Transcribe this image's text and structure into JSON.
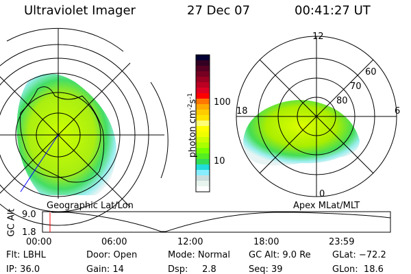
{
  "header": {
    "instrument": "Ultraviolet Imager",
    "date": "27 Dec 07",
    "time": "00:41:27 UT"
  },
  "colorbar": {
    "unit_label": "photon cm",
    "unit_sup1": "-2",
    "unit_mid": "s",
    "unit_sup2": "-1",
    "ticks": [
      "100",
      "10"
    ],
    "colors": [
      "#000033",
      "#330022",
      "#550022",
      "#770022",
      "#990022",
      "#bb0022",
      "#dd0022",
      "#ff0000",
      "#ff7700",
      "#ffaa00",
      "#ffcc00",
      "#ffe400",
      "#ffff77",
      "#ffff00",
      "#eeff00",
      "#ccff00",
      "#aaff00",
      "#77ff00",
      "#55ee22",
      "#33dd55",
      "#22dddd",
      "#88eeff",
      "#ccdddd",
      "#e8f4ee",
      "#ffffff"
    ]
  },
  "polar_plot": {
    "mlt_labels": [
      "12",
      "18",
      "6",
      "0"
    ],
    "mlat_labels": [
      "60",
      "70",
      "80"
    ]
  },
  "map_labels": {
    "left": "Geographic Lat/Lon",
    "right": "Apex MLat/MLT"
  },
  "timeline": {
    "ylabel": "GC Alt",
    "yticks": [
      "9.0",
      "1.8"
    ],
    "xticks": [
      "00:00",
      "06:00",
      "12:00",
      "18:00",
      "23:59"
    ],
    "current_marker_color": "#ff0000"
  },
  "status": {
    "flt": "Flt: LBHL",
    "ip": "IP: 36.0",
    "door": "Door: Open",
    "gain": "Gain: 14",
    "mode": "Mode: Normal",
    "dsp": "Dsp:     2.8",
    "gcalt": "GC Alt: 9.0 Re",
    "seq": "Seq: 39",
    "glat": "GLat: −72.2",
    "glon": "GLon:  18.6"
  }
}
